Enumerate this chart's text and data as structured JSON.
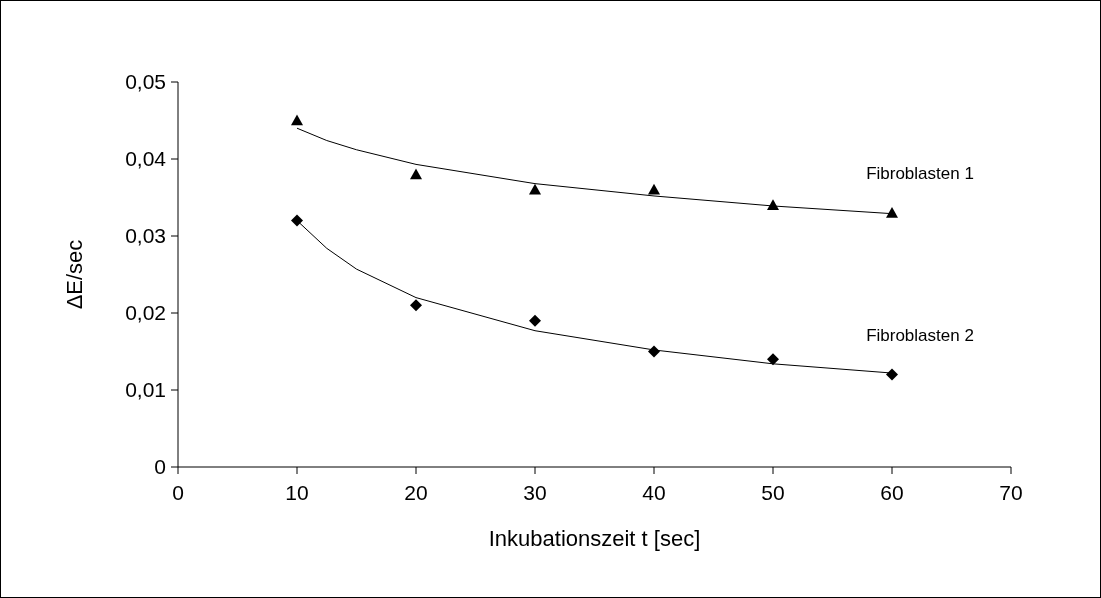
{
  "chart_data": {
    "type": "scatter",
    "xlabel": "Inkubationszeit t [sec]",
    "ylabel": "ΔE/sec",
    "xlim": [
      0,
      70
    ],
    "ylim": [
      0,
      0.05
    ],
    "xticks": [
      0,
      10,
      20,
      30,
      40,
      50,
      60,
      70
    ],
    "yticks": [
      {
        "value": 0,
        "label": "0"
      },
      {
        "value": 0.01,
        "label": "0,01"
      },
      {
        "value": 0.02,
        "label": "0,02"
      },
      {
        "value": 0.03,
        "label": "0,03"
      },
      {
        "value": 0.04,
        "label": "0,04"
      },
      {
        "value": 0.05,
        "label": "0,05"
      }
    ],
    "grid": false,
    "series": [
      {
        "name": "Fibroblasten 1",
        "color": "#000000",
        "marker": "triangle",
        "x": [
          10,
          20,
          30,
          40,
          50,
          60
        ],
        "values": [
          0.045,
          0.038,
          0.036,
          0.036,
          0.034,
          0.033
        ]
      },
      {
        "name": "Fibroblasten 2",
        "color": "#000000",
        "marker": "diamond",
        "x": [
          10,
          20,
          30,
          40,
          50,
          60
        ],
        "values": [
          0.032,
          0.021,
          0.019,
          0.015,
          0.014,
          0.012
        ]
      },
      {
        "type": "line",
        "color": "#000000",
        "marker": "none",
        "x": [
          10,
          12.5,
          15,
          20,
          30,
          40,
          50,
          60
        ],
        "values": [
          0.044,
          0.0424,
          0.0412,
          0.0393,
          0.0368,
          0.0352,
          0.0339,
          0.0329
        ]
      },
      {
        "type": "line",
        "color": "#000000",
        "marker": "none",
        "x": [
          10,
          12.5,
          15,
          20,
          30,
          40,
          50,
          60
        ],
        "values": [
          0.032,
          0.0284,
          0.0257,
          0.022,
          0.0177,
          0.0152,
          0.0134,
          0.0122
        ]
      }
    ]
  }
}
